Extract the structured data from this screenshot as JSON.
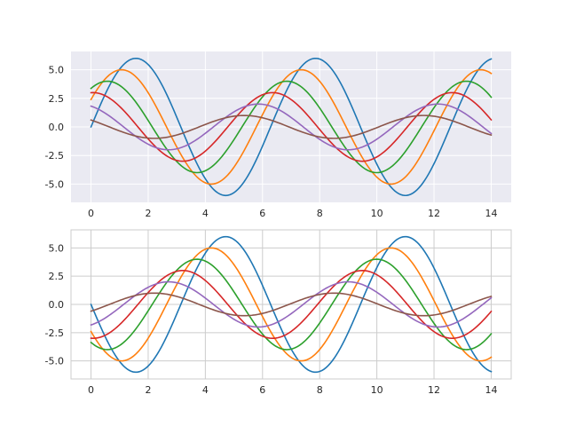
{
  "chart_data": [
    {
      "type": "line",
      "style": "darkgrid",
      "background": "#eaeaf2",
      "grid": true,
      "xlim": [
        -0.7,
        14.7
      ],
      "ylim": [
        -6.6,
        6.6
      ],
      "xticks": [
        "0",
        "2",
        "4",
        "6",
        "8",
        "10",
        "12",
        "14"
      ],
      "yticks": [
        "5.0",
        "2.5",
        "0.0",
        "-2.5",
        "-5.0"
      ],
      "xtick_values": [
        0,
        2,
        4,
        6,
        8,
        10,
        12,
        14
      ],
      "ytick_values": [
        5,
        2.5,
        0,
        -2.5,
        -5
      ],
      "x_range": [
        0,
        14
      ],
      "series": [
        {
          "color": "#1f77b4",
          "amplitude": 6,
          "phase": 0,
          "frequency": 1,
          "sign": 1
        },
        {
          "color": "#ff7f0e",
          "amplitude": 5,
          "phase": 0.5,
          "frequency": 1,
          "sign": 1
        },
        {
          "color": "#2ca02c",
          "amplitude": 4,
          "phase": 1,
          "frequency": 1,
          "sign": 1
        },
        {
          "color": "#d62728",
          "amplitude": 3,
          "phase": 1.5,
          "frequency": 1,
          "sign": 1
        },
        {
          "color": "#9467bd",
          "amplitude": 2,
          "phase": 2,
          "frequency": 1,
          "sign": 1
        },
        {
          "color": "#8c564b",
          "amplitude": 1,
          "phase": 2.5,
          "frequency": 1,
          "sign": 1
        }
      ]
    },
    {
      "type": "line",
      "style": "whitegrid",
      "background": "#ffffff",
      "grid": true,
      "xlim": [
        -0.7,
        14.7
      ],
      "ylim": [
        -6.6,
        6.6
      ],
      "xticks": [
        "0",
        "2",
        "4",
        "6",
        "8",
        "10",
        "12",
        "14"
      ],
      "yticks": [
        "5.0",
        "2.5",
        "0.0",
        "-2.5",
        "-5.0"
      ],
      "xtick_values": [
        0,
        2,
        4,
        6,
        8,
        10,
        12,
        14
      ],
      "ytick_values": [
        5,
        2.5,
        0,
        -2.5,
        -5
      ],
      "x_range": [
        0,
        14
      ],
      "series": [
        {
          "color": "#1f77b4",
          "amplitude": 6,
          "phase": 0,
          "frequency": 1,
          "sign": -1
        },
        {
          "color": "#ff7f0e",
          "amplitude": 5,
          "phase": 0.5,
          "frequency": 1,
          "sign": -1
        },
        {
          "color": "#2ca02c",
          "amplitude": 4,
          "phase": 1,
          "frequency": 1,
          "sign": -1
        },
        {
          "color": "#d62728",
          "amplitude": 3,
          "phase": 1.5,
          "frequency": 1,
          "sign": -1
        },
        {
          "color": "#9467bd",
          "amplitude": 2,
          "phase": 2,
          "frequency": 1,
          "sign": -1
        },
        {
          "color": "#8c564b",
          "amplitude": 1,
          "phase": 2.5,
          "frequency": 1,
          "sign": -1
        }
      ]
    }
  ]
}
